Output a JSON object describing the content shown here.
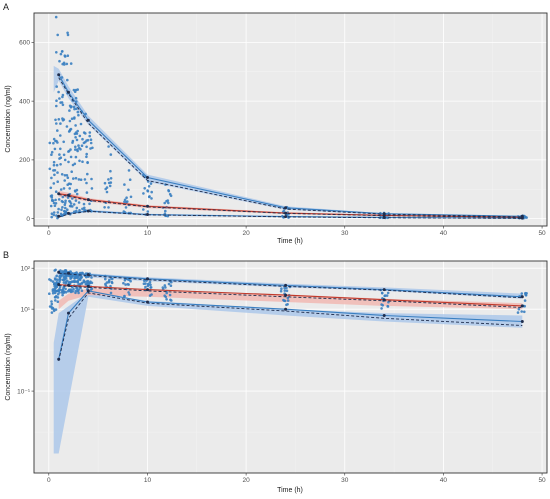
{
  "colors": {
    "observed": "#3a7fc1",
    "observed_band": "#a9c5ea",
    "median_band": "#f1b9b3",
    "median_line": "#c0392b",
    "prediction_line": "#1f2d4d"
  },
  "chart_data": [
    {
      "type": "scatter",
      "panel": "A",
      "scale": "linear",
      "xlabel": "Time (h)",
      "ylabel": "Concentration (ng/ml)",
      "xlim": [
        -1.5,
        50.5
      ],
      "ylim": [
        -25,
        700
      ],
      "xticks": [
        0,
        10,
        20,
        30,
        40,
        50
      ],
      "yticks": [
        0,
        200,
        400,
        600
      ],
      "observed": {
        "times": [
          0.5,
          1,
          1.5,
          2,
          2.5,
          3,
          4,
          6,
          8,
          10,
          12,
          24,
          34,
          48
        ],
        "low": [
          2,
          10,
          12,
          15,
          15,
          20,
          25,
          18,
          15,
          10,
          8,
          4,
          2,
          1
        ],
        "high": [
          300,
          690,
          640,
          560,
          470,
          400,
          360,
          270,
          200,
          150,
          120,
          40,
          20,
          10
        ]
      },
      "bands": {
        "upper": {
          "x": [
            0.5,
            1,
            2,
            4,
            10,
            24,
            34,
            48
          ],
          "lo": [
            430,
            470,
            410,
            320,
            125,
            30,
            13,
            5
          ],
          "hi": [
            520,
            510,
            450,
            350,
            150,
            42,
            18,
            9
          ]
        },
        "median": {
          "x": [
            1,
            2,
            4,
            10,
            24,
            34,
            48
          ],
          "lo": [
            75,
            70,
            58,
            36,
            16,
            9,
            3
          ],
          "hi": [
            95,
            88,
            70,
            46,
            22,
            13,
            7
          ]
        },
        "lower": {
          "x": [
            1,
            2,
            4,
            10,
            24,
            34,
            48
          ],
          "lo": [
            3,
            14,
            22,
            10,
            5,
            2,
            0
          ],
          "hi": [
            10,
            22,
            30,
            17,
            9,
            6,
            3
          ]
        }
      },
      "lines": {
        "obs_upper": {
          "x": [
            1,
            2,
            4,
            10,
            24,
            34,
            48
          ],
          "y": [
            490,
            430,
            335,
            140,
            37,
            17,
            8
          ]
        },
        "pred_upper": {
          "x": [
            1,
            2,
            4,
            10,
            24,
            34,
            48
          ],
          "y": [
            480,
            425,
            325,
            130,
            33,
            15,
            6
          ]
        },
        "obs_median": {
          "x": [
            1,
            2,
            4,
            10,
            24,
            34,
            48
          ],
          "y": [
            85,
            80,
            65,
            42,
            19,
            11,
            5
          ]
        },
        "pred_median": {
          "x": [
            1,
            2,
            4,
            10,
            24,
            34,
            48
          ],
          "y": [
            82,
            76,
            62,
            40,
            18,
            10,
            4
          ]
        },
        "obs_lower": {
          "x": [
            1,
            2,
            4,
            10,
            24,
            34,
            48
          ],
          "y": [
            8,
            18,
            26,
            14,
            7,
            4,
            2
          ]
        },
        "pred_lower": {
          "x": [
            1,
            2,
            4,
            10,
            24,
            34,
            48
          ],
          "y": [
            5,
            15,
            25,
            13,
            6,
            3,
            1
          ]
        }
      },
      "tag": "A"
    },
    {
      "type": "scatter",
      "panel": "B",
      "scale": "log10",
      "xlabel": "Time (h)",
      "ylabel": "Concentration (ng/ml)",
      "xlim": [
        -1.5,
        50.5
      ],
      "ylim": [
        0.001,
        150
      ],
      "xticks": [
        0,
        10,
        20,
        30,
        40,
        50
      ],
      "yticks": [
        100,
        10,
        0.1
      ],
      "ytick_labels": [
        "10²",
        "10¹",
        "10⁻¹"
      ],
      "observed": {
        "times": [
          0.5,
          1,
          1.5,
          2,
          2.5,
          3,
          4,
          6,
          8,
          10,
          12,
          24,
          34,
          48
        ],
        "low": [
          8,
          20,
          25,
          25,
          25,
          25,
          25,
          22,
          20,
          18,
          16,
          12,
          10,
          7
        ],
        "high": [
          60,
          95,
          92,
          90,
          85,
          80,
          75,
          65,
          60,
          55,
          50,
          35,
          30,
          25
        ]
      },
      "bands": {
        "upper": {
          "x": [
            0.5,
            1,
            2,
            4,
            10,
            24,
            34,
            48
          ],
          "lo": [
            42,
            70,
            68,
            60,
            48,
            34,
            28,
            18
          ],
          "hi": [
            60,
            85,
            82,
            75,
            60,
            42,
            34,
            24
          ]
        },
        "median": {
          "x": [
            1,
            2,
            4,
            10,
            24,
            34,
            48
          ],
          "lo": [
            10,
            16,
            22,
            20,
            15,
            12,
            10
          ],
          "hi": [
            16,
            24,
            32,
            30,
            23,
            18,
            14
          ]
        },
        "lower": {
          "x": [
            0.5,
            1,
            4,
            10,
            24,
            34,
            48
          ],
          "lo": [
            0.003,
            0.003,
            20,
            12,
            7,
            5,
            3.5
          ],
          "hi": [
            1.5,
            8,
            26,
            16,
            10,
            8,
            7
          ]
        }
      },
      "lines": {
        "obs_upper": {
          "x": [
            1,
            2,
            4,
            10,
            24,
            34,
            48
          ],
          "y": [
            80,
            75,
            70,
            55,
            38,
            30,
            20
          ]
        },
        "pred_upper": {
          "x": [
            1,
            2,
            4,
            10,
            24,
            34,
            48
          ],
          "y": [
            75,
            72,
            66,
            52,
            36,
            29,
            19
          ]
        },
        "obs_median": {
          "x": [
            1,
            2,
            4,
            10,
            24,
            34,
            48
          ],
          "y": [
            40,
            38,
            36,
            30,
            22,
            17,
            12
          ]
        },
        "pred_median": {
          "x": [
            1,
            2,
            4,
            10,
            24,
            34,
            48
          ],
          "y": [
            38,
            36,
            34,
            28,
            20,
            16,
            11
          ]
        },
        "obs_lower": {
          "x": [
            1,
            2,
            4,
            10,
            24,
            34,
            48
          ],
          "y": [
            0.6,
            8,
            28,
            15,
            10,
            7,
            5
          ]
        },
        "pred_lower": {
          "x": [
            1,
            2,
            4,
            10,
            24,
            34,
            48
          ],
          "y": [
            0.55,
            6,
            25,
            14,
            9,
            6,
            4
          ]
        }
      },
      "tag": "B"
    }
  ]
}
